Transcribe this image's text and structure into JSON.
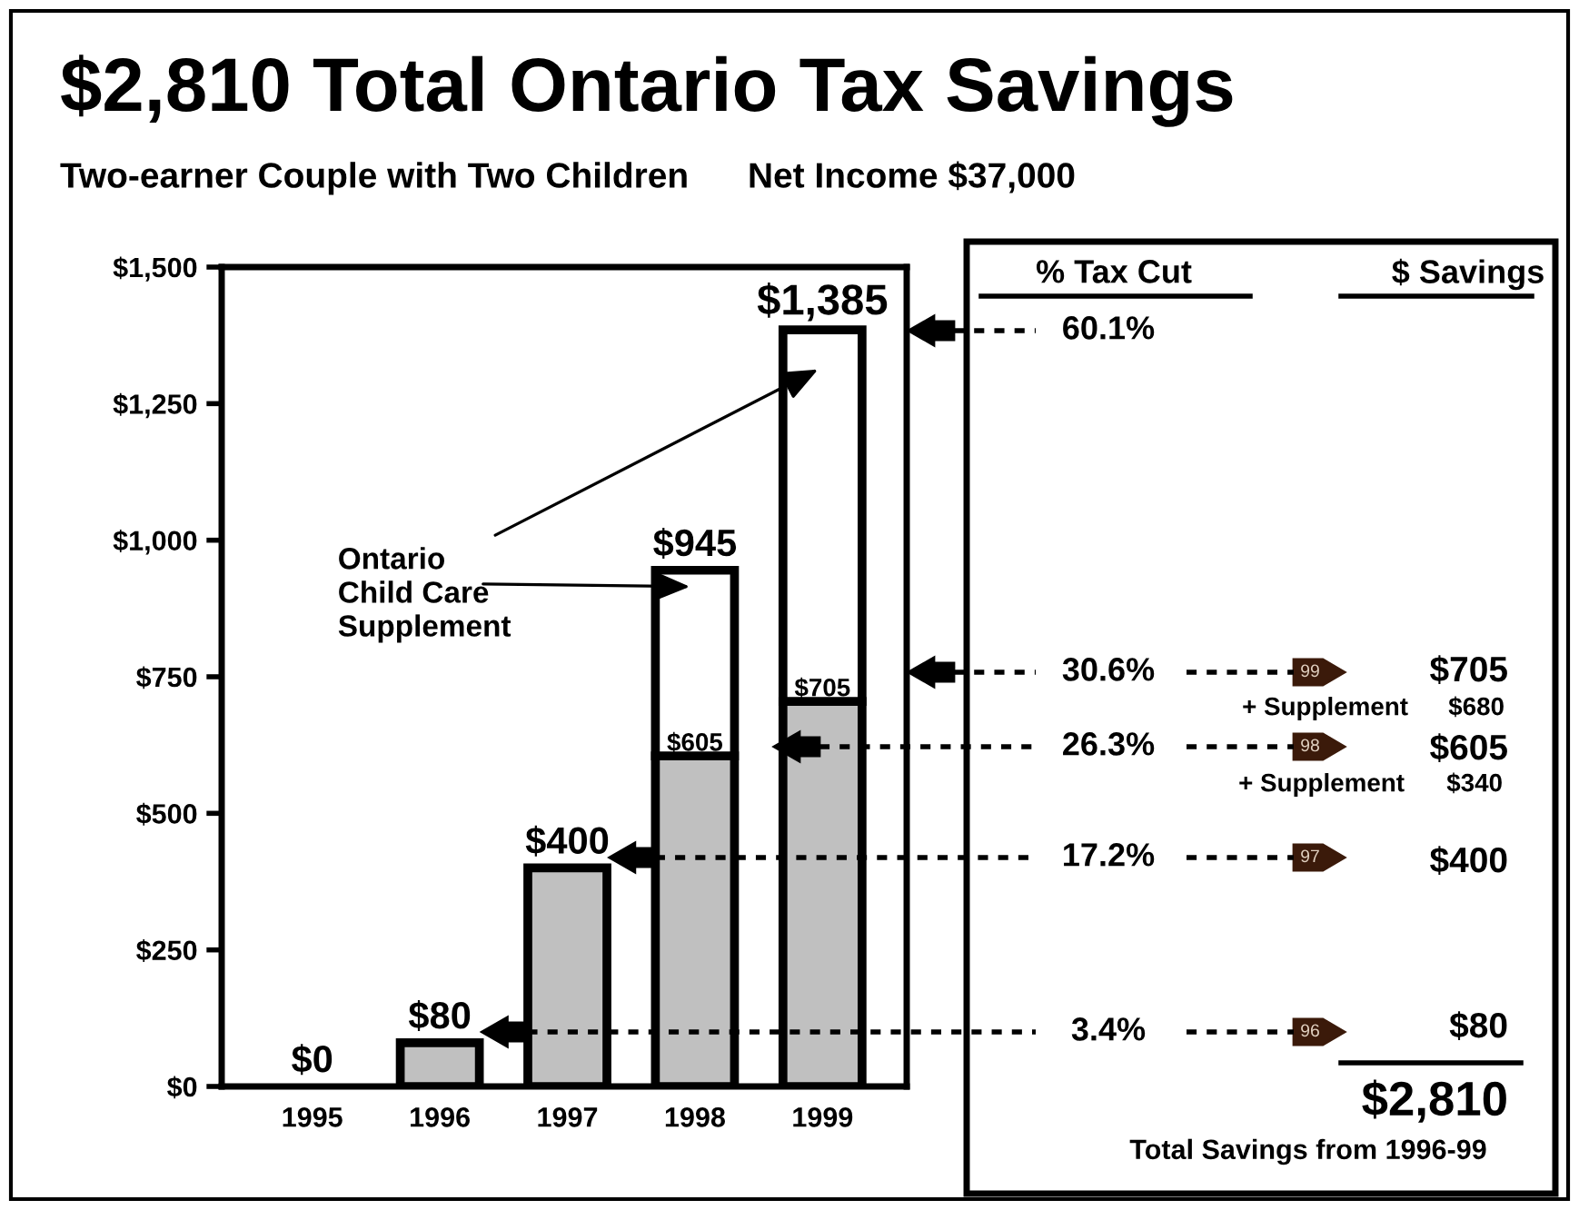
{
  "chart_data": [
    {
      "type": "bar",
      "title": "$2,810 Total Ontario Tax Savings",
      "subtitle": "Two-earner Couple with Two Children      Net Income $37,000",
      "categories": [
        "1995",
        "1996",
        "1997",
        "1998",
        "1999"
      ],
      "series": [
        {
          "color": "#c0c0c0",
          "values": [
            0,
            80,
            400,
            605,
            705
          ],
          "value_labels": [
            null,
            null,
            null,
            "$605",
            "$705"
          ]
        },
        {
          "color": "#ffffff",
          "values": [
            0,
            0,
            0,
            340,
            680
          ]
        }
      ],
      "stacked": true,
      "totals": [
        "$0",
        "$80",
        "$400",
        "$945",
        "$1,385"
      ],
      "ylim": [
        0,
        1500
      ],
      "yticks": [
        {
          "value": 0,
          "label": "$0"
        },
        {
          "value": 250,
          "label": "$250"
        },
        {
          "value": 500,
          "label": "$500"
        },
        {
          "value": 750,
          "label": "$750"
        },
        {
          "value": 1000,
          "label": "$1,000"
        },
        {
          "value": 1250,
          "label": "$1,250"
        },
        {
          "value": 1500,
          "label": "$1,500"
        }
      ],
      "annotations": [
        "Ontario\nChild Care\nSupplement"
      ]
    },
    {
      "type": "other",
      "annotations": [
        "% Tax Cut",
        "$ Savings",
        "60.1%",
        "30.6%",
        "26.3%",
        "17.2%",
        "3.4%",
        "99",
        "98",
        "97",
        "96",
        "$705",
        "+ Supplement",
        "$680",
        "$605",
        "+ Supplement",
        "$340",
        "$400",
        "$80",
        "$2,810",
        "Total Savings from 1996-99"
      ]
    }
  ]
}
